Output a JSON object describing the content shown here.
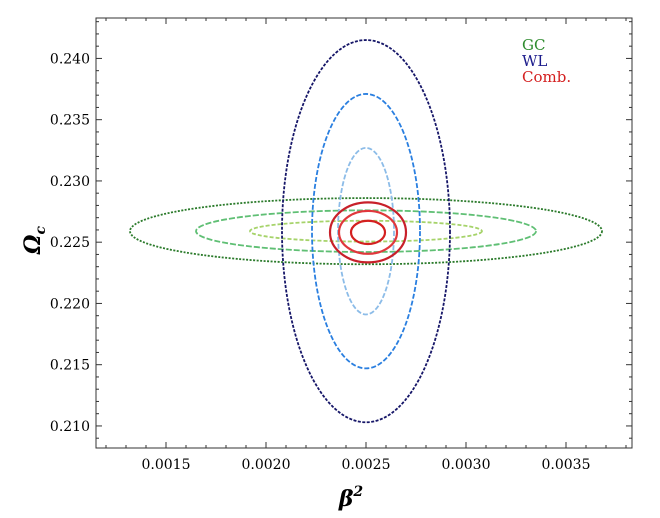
{
  "chart_data": {
    "type": "contour",
    "xlabel": "β",
    "xlabel_sup": "2",
    "ylabel": "Ω",
    "ylabel_sub": "c",
    "xlim": [
      0.00115,
      0.00383
    ],
    "ylim": [
      0.2082,
      0.2433
    ],
    "x_ticks": [
      {
        "value": 0.0015,
        "label": "0.0015"
      },
      {
        "value": 0.002,
        "label": "0.0020"
      },
      {
        "value": 0.0025,
        "label": "0.0025"
      },
      {
        "value": 0.003,
        "label": "0.0030"
      },
      {
        "value": 0.0035,
        "label": "0.0035"
      }
    ],
    "y_ticks": [
      {
        "value": 0.21,
        "label": "0.210"
      },
      {
        "value": 0.215,
        "label": "0.215"
      },
      {
        "value": 0.22,
        "label": "0.220"
      },
      {
        "value": 0.225,
        "label": "0.225"
      },
      {
        "value": 0.23,
        "label": "0.230"
      },
      {
        "value": 0.235,
        "label": "0.235"
      },
      {
        "value": 0.24,
        "label": "0.240"
      }
    ],
    "legend": {
      "placement": "top-right",
      "entries": [
        {
          "label": "GC",
          "color": "#2e8b2e"
        },
        {
          "label": "WL",
          "color": "#1c1c8c"
        },
        {
          "label": "Comb.",
          "color": "#d42020"
        }
      ]
    },
    "series": [
      {
        "name": "GC",
        "contours": [
          {
            "cx": 0.0025,
            "cy": 0.2259,
            "rx": 0.00058,
            "ry": 0.00085,
            "color": "#a6d36a",
            "dash": "4,2"
          },
          {
            "cx": 0.0025,
            "cy": 0.2259,
            "rx": 0.00085,
            "ry": 0.0017,
            "color": "#5fbf74",
            "dash": "6,2"
          },
          {
            "cx": 0.0025,
            "cy": 0.2259,
            "rx": 0.00118,
            "ry": 0.0027,
            "color": "#2a7a2a",
            "dash": "2,1.5"
          }
        ]
      },
      {
        "name": "WL",
        "contours": [
          {
            "cx": 0.0025,
            "cy": 0.2259,
            "rx": 0.00014,
            "ry": 0.0068,
            "color": "#8cbce8",
            "dash": "5,2"
          },
          {
            "cx": 0.0025,
            "cy": 0.2259,
            "rx": 0.00027,
            "ry": 0.0112,
            "color": "#2a7fe0",
            "dash": "5,2"
          },
          {
            "cx": 0.0025,
            "cy": 0.2259,
            "rx": 0.00042,
            "ry": 0.0156,
            "color": "#161668",
            "dash": "3,1.5"
          }
        ]
      },
      {
        "name": "Comb.",
        "contours": [
          {
            "cx": 0.00251,
            "cy": 0.2258,
            "rx": 8.5e-05,
            "ry": 0.00095,
            "color": "#d42020",
            "dash": ""
          },
          {
            "cx": 0.00251,
            "cy": 0.2258,
            "rx": 0.000145,
            "ry": 0.00175,
            "color": "#e0383c",
            "dash": ""
          },
          {
            "cx": 0.00251,
            "cy": 0.2258,
            "rx": 0.00019,
            "ry": 0.00245,
            "color": "#c8202a",
            "dash": ""
          }
        ]
      }
    ],
    "grid": false
  }
}
